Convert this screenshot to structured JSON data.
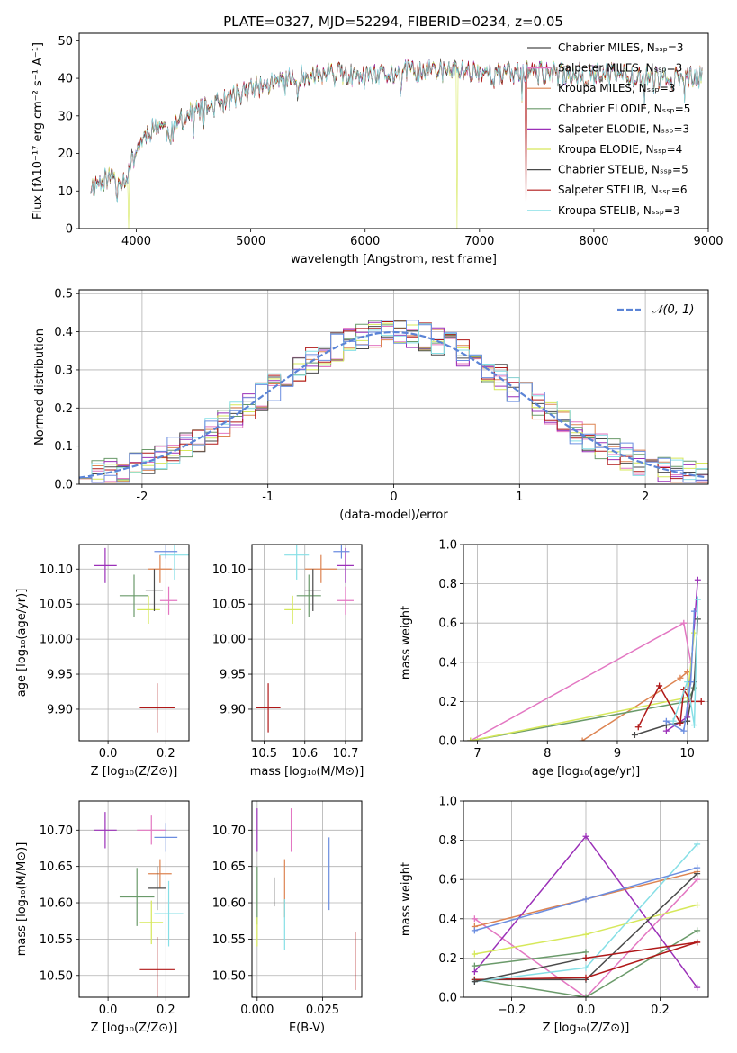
{
  "colors": [
    "#e377c2",
    "#dd8452",
    "#6a9a6a",
    "#9b30b8",
    "#d6e85a",
    "#4a4a4a",
    "#b01818",
    "#86dfe6",
    "#6b8de0"
  ],
  "chart_data": [
    {
      "id": "spectrum",
      "type": "line",
      "title": "PLATE=0327, MJD=52294, FIBERID=0234, z=0.05",
      "xlabel": "wavelength [Angstrom, rest frame]",
      "ylabel": "Flux [fλ10⁻¹⁷ erg cm⁻² s⁻¹ A⁻¹]",
      "xlim": [
        3500,
        9000
      ],
      "ylim": [
        0,
        52
      ],
      "xticks": [
        4000,
        5000,
        6000,
        7000,
        8000,
        9000
      ],
      "yticks": [
        0,
        10,
        20,
        30,
        40,
        50
      ],
      "grid": false,
      "legend_position": "right",
      "legend": [
        "Chabrier MILES, Nₛₛₚ=3",
        "Salpeter MILES, Nₛₛₚ=3",
        "Kroupa MILES, Nₛₛₚ=3",
        "Chabrier ELODIE, Nₛₛₚ=5",
        "Salpeter ELODIE, Nₛₛₚ=3",
        "Kroupa ELODIE, Nₛₛₚ=4",
        "Chabrier STELIB, Nₛₛₚ=5",
        "Salpeter STELIB, Nₛₛₚ=6",
        "Kroupa STELIB, Nₛₛₚ=3"
      ],
      "series_color_index": [
        5,
        0,
        1,
        2,
        3,
        4,
        5,
        6,
        7
      ],
      "legend_color_index": [
        5,
        0,
        1,
        2,
        3,
        4,
        5,
        6,
        7
      ],
      "continuum": {
        "x": [
          3600,
          3700,
          3800,
          3900,
          4000,
          4100,
          4200,
          4300,
          4400,
          4500,
          4600,
          4700,
          4800,
          4900,
          5000,
          5200,
          5400,
          5600,
          5800,
          6000,
          6200,
          6400,
          6600,
          6800,
          7000,
          7200,
          7400,
          7700,
          8000,
          8300,
          8600,
          8900
        ],
        "y": [
          11,
          13,
          14,
          13,
          21,
          26,
          28,
          25,
          29,
          31,
          32,
          33,
          34,
          36,
          37,
          39,
          40,
          41,
          41,
          40,
          41,
          42,
          42,
          42,
          42,
          41,
          42,
          41,
          41,
          41,
          40,
          40
        ]
      },
      "dips": [
        {
          "x": 3930,
          "y": 0
        },
        {
          "x": 6800,
          "y": 0
        },
        {
          "x": 7410,
          "y": 0
        }
      ]
    },
    {
      "id": "residuals",
      "type": "line",
      "xlabel": "(data-model)/error",
      "ylabel": "Normed distribution",
      "xlim": [
        -2.5,
        2.5
      ],
      "ylim": [
        0,
        0.51
      ],
      "xticks": [
        -2,
        -1,
        0,
        1,
        2
      ],
      "yticks": [
        0.0,
        0.1,
        0.2,
        0.3,
        0.4,
        0.5
      ],
      "ytick_labels": [
        "0.0",
        "0.1",
        "0.2",
        "0.3",
        "0.4",
        "0.5"
      ],
      "grid": true,
      "legend_position": "top-right",
      "reference_label": "𝒩(0, 1)",
      "reference_color": "#5b84d6",
      "bin_width": 0.1
    },
    {
      "id": "age_vs_Z",
      "type": "scatter",
      "xlabel": "Z [log₁₀(Z/Z⊙)]",
      "ylabel": "age  [log₁₀(age/yr)]",
      "xlim": [
        -0.1,
        0.28
      ],
      "ylim": [
        9.855,
        10.135
      ],
      "xticks": [
        0.0,
        0.2
      ],
      "xtick_labels": [
        "0.0",
        "0.2"
      ],
      "yticks": [
        9.9,
        9.95,
        10.0,
        10.05,
        10.1
      ],
      "ytick_labels": [
        "9.90",
        "9.95",
        "10.00",
        "10.05",
        "10.10"
      ],
      "grid": true,
      "points": [
        {
          "x": 0.21,
          "y": 10.055,
          "xerr": 0.03,
          "yerr": 0.02,
          "c": 0
        },
        {
          "x": 0.18,
          "y": 10.1,
          "xerr": 0.04,
          "yerr": 0.02,
          "c": 1
        },
        {
          "x": 0.09,
          "y": 10.062,
          "xerr": 0.05,
          "yerr": 0.03,
          "c": 2
        },
        {
          "x": -0.01,
          "y": 10.105,
          "xerr": 0.04,
          "yerr": 0.025,
          "c": 3
        },
        {
          "x": 0.14,
          "y": 10.042,
          "xerr": 0.04,
          "yerr": 0.02,
          "c": 4
        },
        {
          "x": 0.16,
          "y": 10.07,
          "xerr": 0.03,
          "yerr": 0.03,
          "c": 5
        },
        {
          "x": 0.17,
          "y": 9.902,
          "xerr": 0.06,
          "yerr": 0.035,
          "c": 6
        },
        {
          "x": 0.23,
          "y": 10.12,
          "xerr": 0.05,
          "yerr": 0.035,
          "c": 7
        },
        {
          "x": 0.2,
          "y": 10.125,
          "xerr": 0.04,
          "yerr": 0.01,
          "c": 8
        }
      ]
    },
    {
      "id": "age_vs_mass",
      "type": "scatter",
      "xlabel": "mass [log₁₀(M/M⊙)]",
      "xlim": [
        10.47,
        10.74
      ],
      "ylim": [
        9.855,
        10.135
      ],
      "xticks": [
        10.5,
        10.6,
        10.7
      ],
      "xtick_labels": [
        "10.5",
        "10.6",
        "10.7"
      ],
      "yticks": [
        9.9,
        9.95,
        10.0,
        10.05,
        10.1
      ],
      "ytick_labels": [
        "9.90",
        "9.95",
        "10.00",
        "10.05",
        "10.10"
      ],
      "grid": true,
      "points": [
        {
          "x": 10.7,
          "y": 10.055,
          "xerr": 0.02,
          "yerr": 0.02,
          "c": 0
        },
        {
          "x": 10.64,
          "y": 10.1,
          "xerr": 0.04,
          "yerr": 0.02,
          "c": 1
        },
        {
          "x": 10.61,
          "y": 10.062,
          "xerr": 0.03,
          "yerr": 0.03,
          "c": 2
        },
        {
          "x": 10.7,
          "y": 10.105,
          "xerr": 0.02,
          "yerr": 0.025,
          "c": 3
        },
        {
          "x": 10.57,
          "y": 10.042,
          "xerr": 0.02,
          "yerr": 0.02,
          "c": 4
        },
        {
          "x": 10.62,
          "y": 10.07,
          "xerr": 0.02,
          "yerr": 0.03,
          "c": 5
        },
        {
          "x": 10.51,
          "y": 9.902,
          "xerr": 0.03,
          "yerr": 0.035,
          "c": 6
        },
        {
          "x": 10.58,
          "y": 10.12,
          "xerr": 0.03,
          "yerr": 0.035,
          "c": 7
        },
        {
          "x": 10.69,
          "y": 10.125,
          "xerr": 0.02,
          "yerr": 0.01,
          "c": 8
        }
      ]
    },
    {
      "id": "weight_vs_age",
      "type": "line",
      "xlabel": "age  [log₁₀(age/yr)]",
      "ylabel": "mass weight",
      "xlim": [
        6.8,
        10.3
      ],
      "ylim": [
        0,
        1.0
      ],
      "xticks": [
        7,
        8,
        9,
        10
      ],
      "yticks": [
        0.0,
        0.2,
        0.4,
        0.6,
        0.8,
        1.0
      ],
      "ytick_labels": [
        "0.0",
        "0.2",
        "0.4",
        "0.6",
        "0.8",
        "1.0"
      ],
      "grid": true,
      "series": [
        {
          "c": 0,
          "x": [
            6.9,
            9.95,
            10.05
          ],
          "y": [
            0.0,
            0.6,
            0.4
          ]
        },
        {
          "c": 1,
          "x": [
            8.5,
            9.9,
            10.0
          ],
          "y": [
            0.0,
            0.32,
            0.35
          ]
        },
        {
          "c": 2,
          "x": [
            6.9,
            10.0,
            10.1
          ],
          "y": [
            0.0,
            0.2,
            0.27
          ]
        },
        {
          "c": 3,
          "x": [
            9.7,
            10.0,
            10.15
          ],
          "y": [
            0.05,
            0.12,
            0.82
          ]
        },
        {
          "c": 4,
          "x": [
            6.9,
            10.0,
            10.1
          ],
          "y": [
            0.0,
            0.22,
            0.55
          ]
        },
        {
          "c": 5,
          "x": [
            9.25,
            9.7,
            10.0,
            10.1,
            10.15
          ],
          "y": [
            0.03,
            0.08,
            0.1,
            0.3,
            0.62
          ]
        },
        {
          "c": 6,
          "x": [
            9.3,
            9.6,
            9.9,
            9.95,
            10.05,
            10.2
          ],
          "y": [
            0.07,
            0.28,
            0.09,
            0.26,
            0.2,
            0.2
          ]
        },
        {
          "c": 7,
          "x": [
            9.8,
            10.0,
            10.1,
            10.15
          ],
          "y": [
            0.1,
            0.3,
            0.08,
            0.72
          ]
        },
        {
          "c": 8,
          "x": [
            9.7,
            9.95,
            10.05,
            10.1
          ],
          "y": [
            0.1,
            0.05,
            0.3,
            0.66
          ]
        }
      ]
    },
    {
      "id": "mass_vs_Z",
      "type": "scatter",
      "xlabel": "Z [log₁₀(Z/Z⊙)]",
      "ylabel": "mass [log₁₀(M/M⊙)]",
      "xlim": [
        -0.1,
        0.28
      ],
      "ylim": [
        10.47,
        10.74
      ],
      "xticks": [
        0.0,
        0.2
      ],
      "xtick_labels": [
        "0.0",
        "0.2"
      ],
      "yticks": [
        10.5,
        10.55,
        10.6,
        10.65,
        10.7
      ],
      "ytick_labels": [
        "10.50",
        "10.55",
        "10.60",
        "10.65",
        "10.70"
      ],
      "grid": true,
      "points": [
        {
          "x": 0.15,
          "y": 10.7,
          "xerr": 0.05,
          "yerr": 0.02,
          "c": 0
        },
        {
          "x": 0.18,
          "y": 10.64,
          "xerr": 0.04,
          "yerr": 0.02,
          "c": 1
        },
        {
          "x": 0.1,
          "y": 10.608,
          "xerr": 0.06,
          "yerr": 0.04,
          "c": 2
        },
        {
          "x": -0.01,
          "y": 10.7,
          "xerr": 0.04,
          "yerr": 0.025,
          "c": 3
        },
        {
          "x": 0.15,
          "y": 10.573,
          "xerr": 0.04,
          "yerr": 0.03,
          "c": 4
        },
        {
          "x": 0.17,
          "y": 10.62,
          "xerr": 0.03,
          "yerr": 0.03,
          "c": 5
        },
        {
          "x": 0.17,
          "y": 10.508,
          "xerr": 0.06,
          "yerr": 0.045,
          "c": 6
        },
        {
          "x": 0.21,
          "y": 10.585,
          "xerr": 0.05,
          "yerr": 0.045,
          "c": 7
        },
        {
          "x": 0.2,
          "y": 10.69,
          "xerr": 0.04,
          "yerr": 0.02,
          "c": 8
        }
      ]
    },
    {
      "id": "mass_vs_ebv",
      "type": "scatter",
      "xlabel": "E(B-V)",
      "xlim": [
        -0.002,
        0.04
      ],
      "ylim": [
        10.47,
        10.74
      ],
      "xticks": [
        0.0,
        0.025
      ],
      "xtick_labels": [
        "0.000",
        "0.025"
      ],
      "yticks": [
        10.5,
        10.55,
        10.6,
        10.65,
        10.7
      ],
      "ytick_labels": [
        "10.50",
        "10.55",
        "10.60",
        "10.65",
        "10.70"
      ],
      "grid": true,
      "points": [
        {
          "x": 0.013,
          "y": 10.7,
          "yerr": 0.03,
          "c": 0
        },
        {
          "x": 0.0105,
          "y": 10.62,
          "yerr": 0.04,
          "c": 1
        },
        {
          "x": 0.0,
          "y": 10.61,
          "yerr": 0.04,
          "c": 2
        },
        {
          "x": 0.0,
          "y": 10.7,
          "yerr": 0.03,
          "c": 3
        },
        {
          "x": 0.0,
          "y": 10.56,
          "yerr": 0.02,
          "c": 4
        },
        {
          "x": 0.0065,
          "y": 10.615,
          "yerr": 0.02,
          "c": 5
        },
        {
          "x": 0.0375,
          "y": 10.52,
          "yerr": 0.04,
          "c": 6
        },
        {
          "x": 0.0105,
          "y": 10.57,
          "yerr": 0.035,
          "c": 7
        },
        {
          "x": 0.0275,
          "y": 10.64,
          "yerr": 0.05,
          "c": 8
        }
      ]
    },
    {
      "id": "weight_vs_Z",
      "type": "line",
      "xlabel": "Z [log₁₀(Z/Z⊙)]",
      "ylabel": "mass weight",
      "xlim": [
        -0.33,
        0.33
      ],
      "ylim": [
        0,
        1.0
      ],
      "xticks": [
        -0.2,
        0.0,
        0.2
      ],
      "xtick_labels": [
        "−0.2",
        "0.0",
        "0.2"
      ],
      "yticks": [
        0.0,
        0.2,
        0.4,
        0.6,
        0.8,
        1.0
      ],
      "ytick_labels": [
        "0.0",
        "0.2",
        "0.4",
        "0.6",
        "0.8",
        "1.0"
      ],
      "grid": true,
      "series": [
        {
          "c": 0,
          "x": [
            -0.3,
            0.0,
            0.3
          ],
          "y": [
            0.4,
            0.0,
            0.6
          ]
        },
        {
          "c": 1,
          "x": [
            -0.3,
            0.0,
            0.3
          ],
          "y": [
            0.36,
            0.5,
            0.64
          ]
        },
        {
          "c": 2,
          "x": [
            -0.3,
            0.0,
            0.3
          ],
          "y": [
            0.09,
            0.0,
            0.34
          ]
        },
        {
          "c": 3,
          "x": [
            -0.3,
            0.0,
            0.3
          ],
          "y": [
            0.13,
            0.82,
            0.05
          ]
        },
        {
          "c": 4,
          "x": [
            -0.3,
            0.0,
            0.3
          ],
          "y": [
            0.22,
            0.32,
            0.47
          ]
        },
        {
          "c": 5,
          "x": [
            -0.3,
            0.0,
            0.3
          ],
          "y": [
            0.09,
            0.09,
            0.63
          ]
        },
        {
          "c": 6,
          "x": [
            -0.3,
            0.0,
            0.3
          ],
          "y": [
            0.09,
            0.1,
            0.28
          ]
        },
        {
          "c": 7,
          "x": [
            -0.3,
            0.0,
            0.3
          ],
          "y": [
            0.08,
            0.15,
            0.78
          ]
        },
        {
          "c": 8,
          "x": [
            -0.3,
            0.0,
            0.3
          ],
          "y": [
            0.34,
            0.5,
            0.66
          ]
        },
        {
          "c": 2,
          "x": [
            -0.3,
            0.0
          ],
          "y": [
            0.16,
            0.23
          ]
        },
        {
          "c": 5,
          "x": [
            -0.3,
            0.0
          ],
          "y": [
            0.08,
            0.2
          ]
        },
        {
          "c": 6,
          "x": [
            0.0,
            0.3
          ],
          "y": [
            0.2,
            0.28
          ]
        }
      ]
    }
  ]
}
